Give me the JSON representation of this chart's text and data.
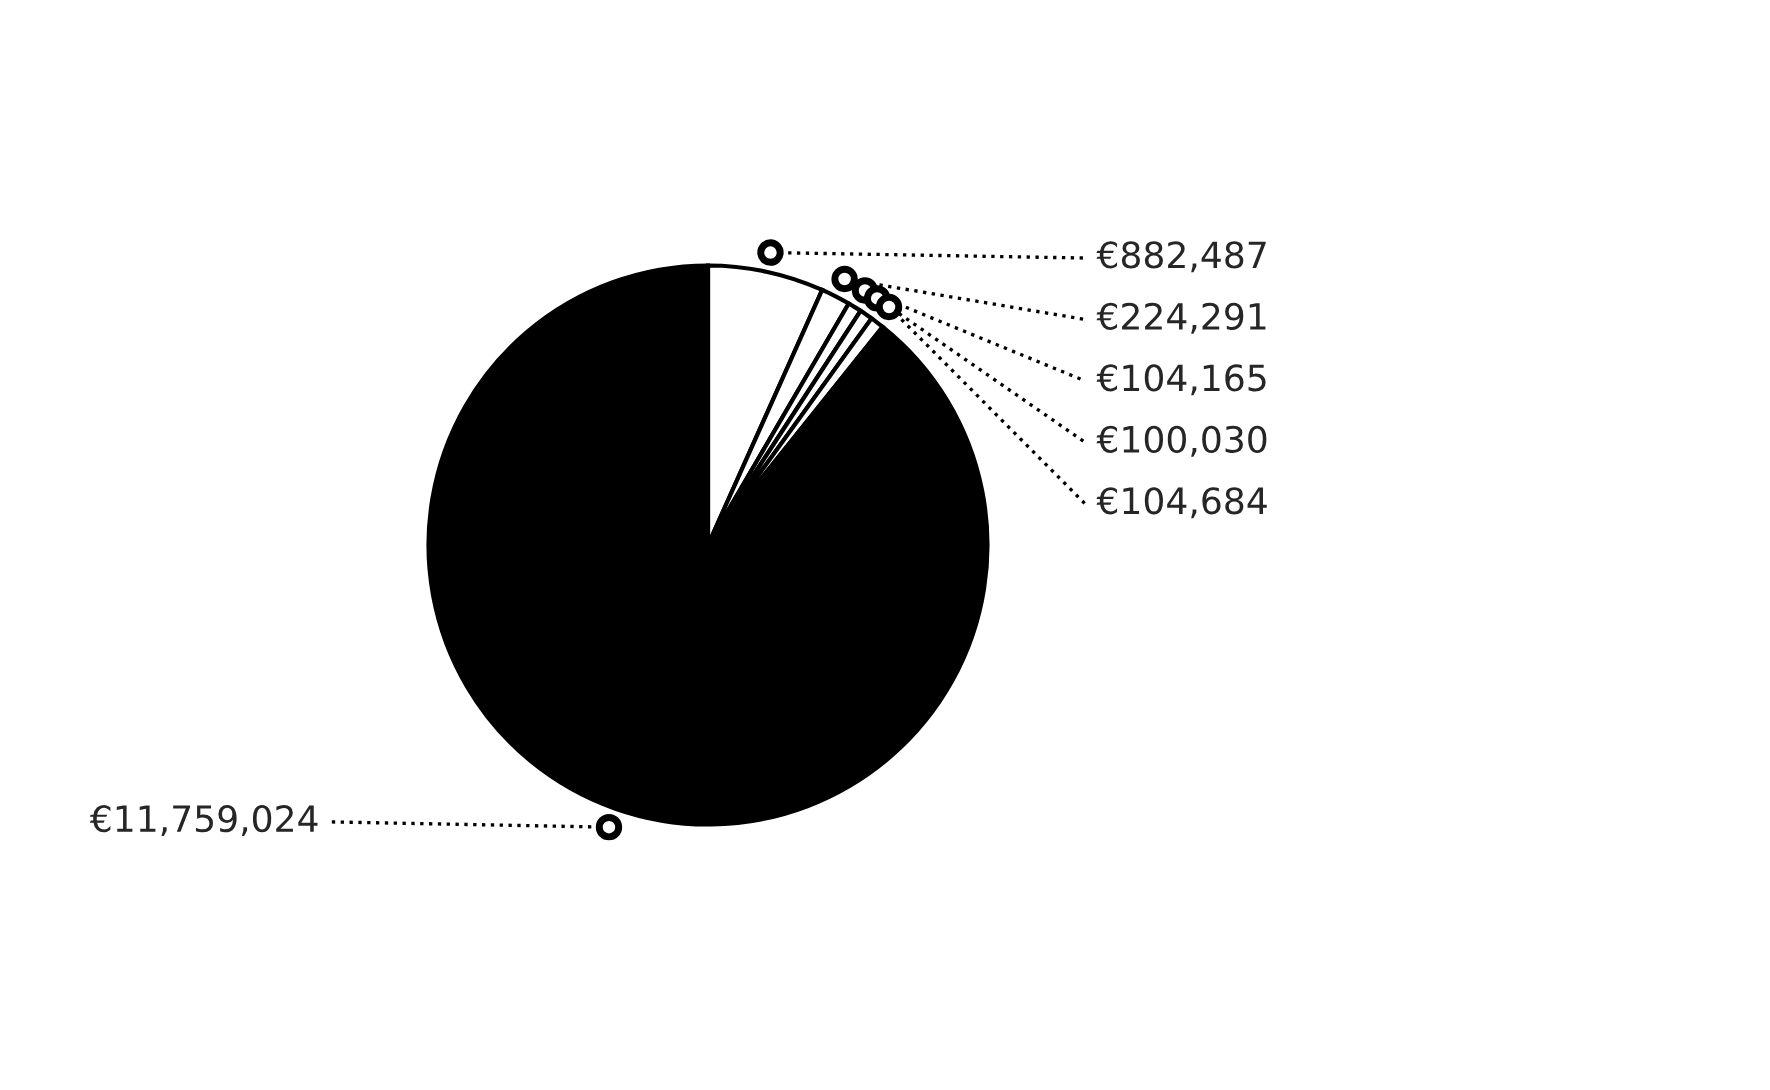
{
  "chart_data": {
    "type": "pie",
    "categories": [
      null,
      null,
      null,
      null,
      null,
      null
    ],
    "values": [
      882487,
      224291,
      104165,
      100030,
      104684,
      11759024
    ],
    "colors": [
      "#ffffff",
      "#ffffff",
      "#ffffff",
      "#ffffff",
      "#ffffff",
      "#000000"
    ],
    "value_labels": [
      "€882,487",
      "€224,291",
      "€104,165",
      "€100,030",
      "€104,684",
      "€11,759,024"
    ],
    "legend": false
  }
}
